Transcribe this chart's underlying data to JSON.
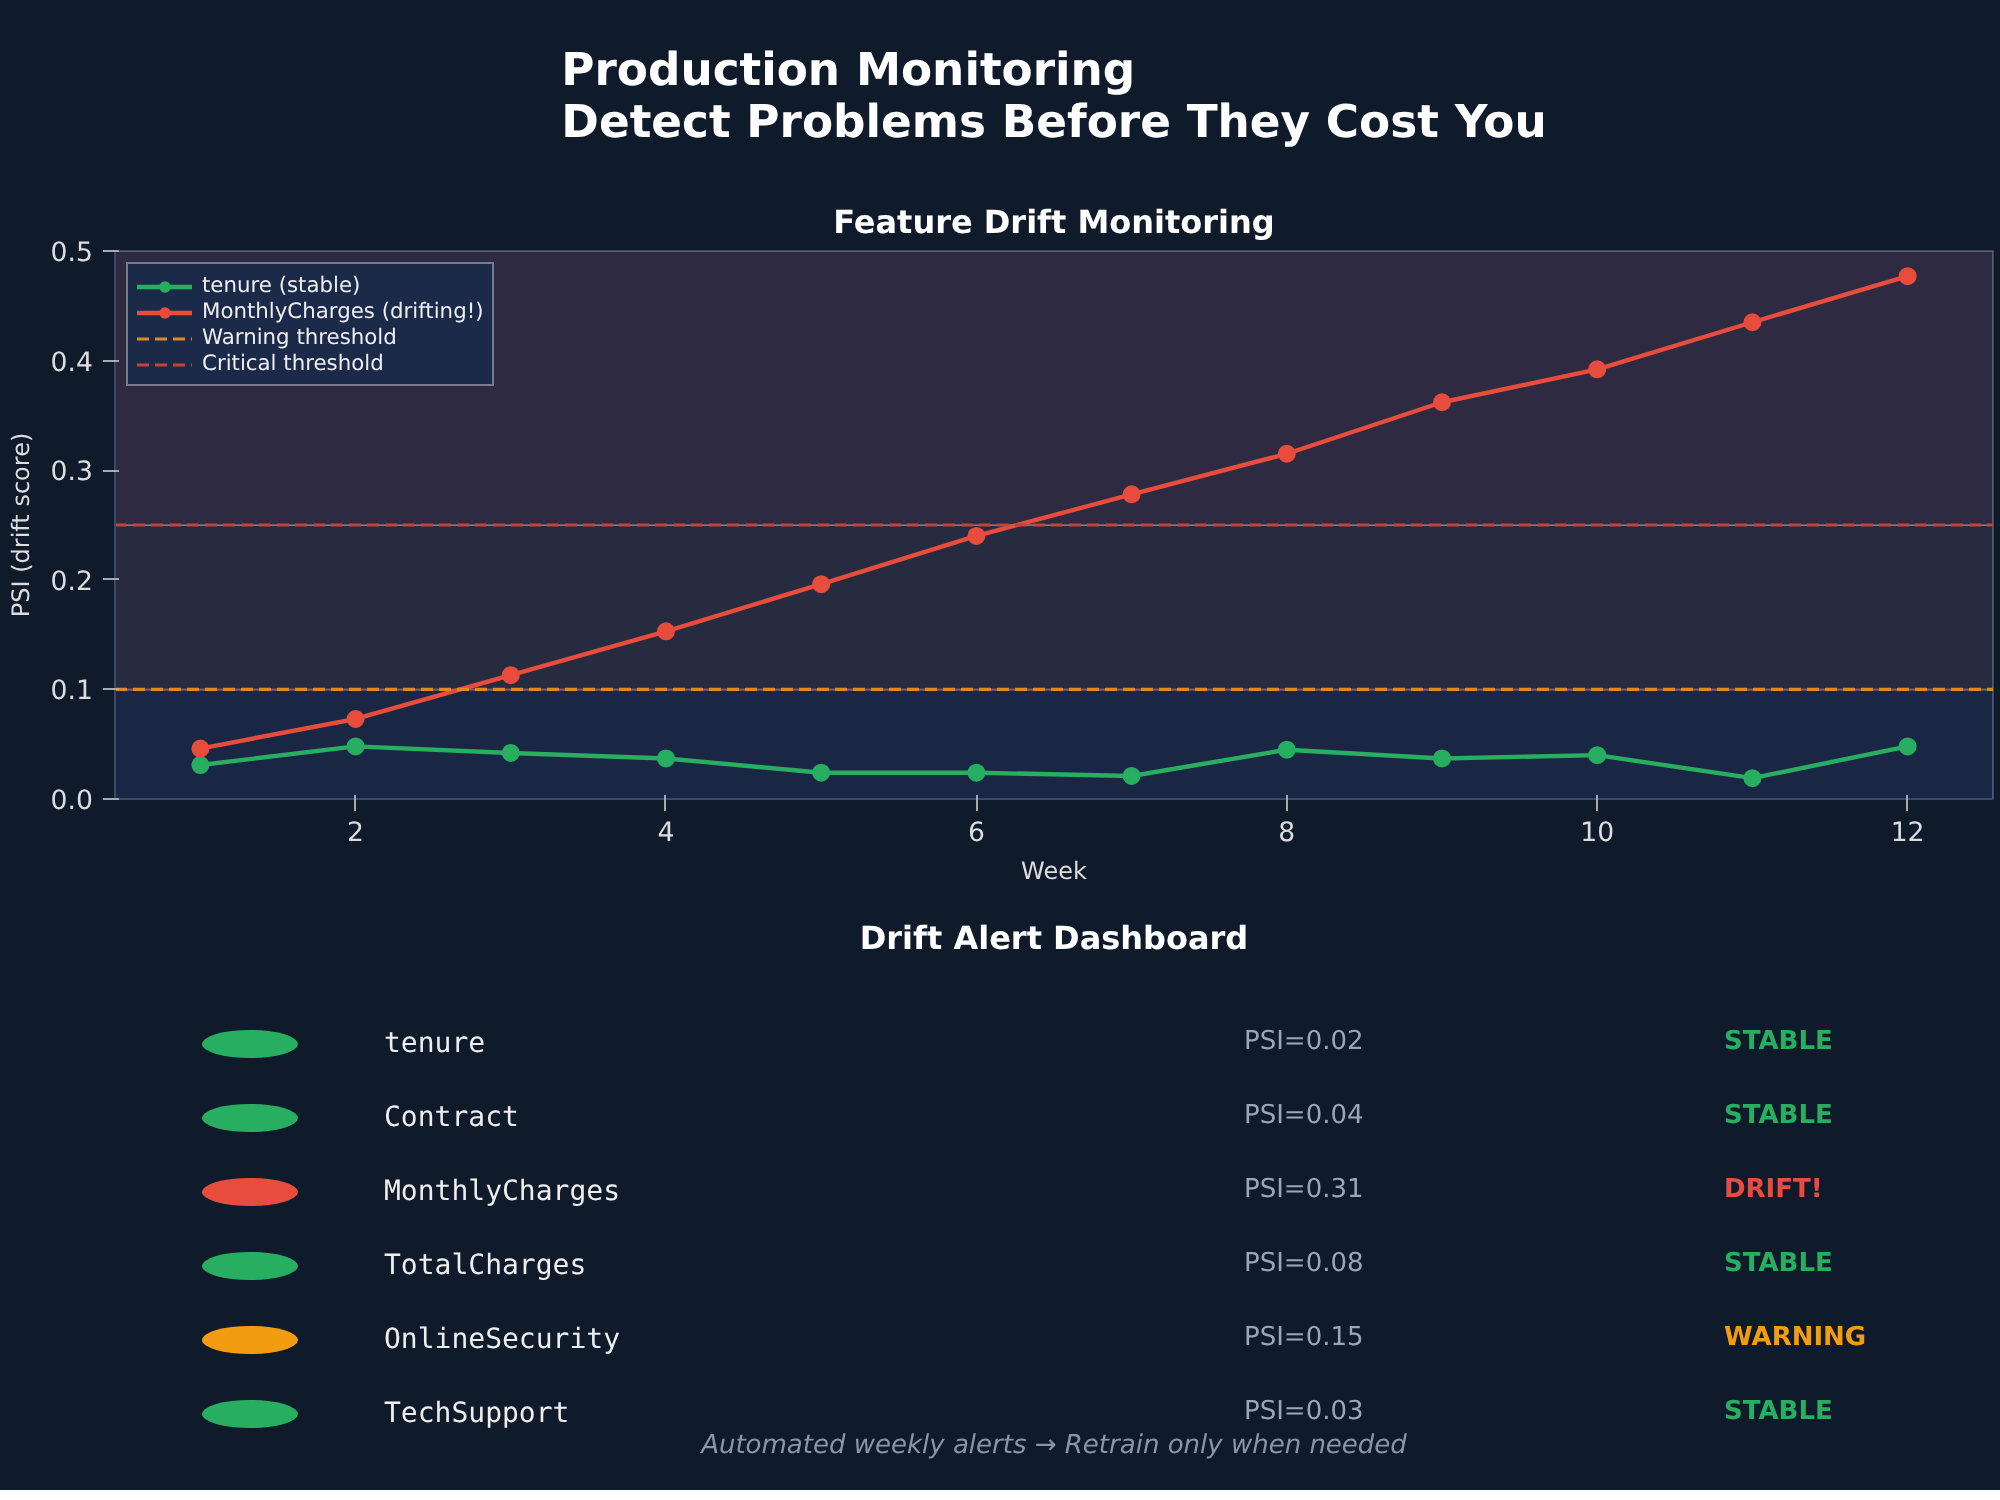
{
  "chart_data": [
    {
      "type": "line",
      "title": "Production Monitoring\nDetect Problems Before They Cost You",
      "subtitle": "Feature Drift Monitoring",
      "xlabel": "Week",
      "ylabel": "PSI (drift score)",
      "x": [
        1,
        2,
        3,
        4,
        5,
        6,
        7,
        8,
        9,
        10,
        11,
        12
      ],
      "series": [
        {
          "name": "tenure (stable)",
          "color": "#27ae60",
          "values": [
            0.031,
            0.048,
            0.042,
            0.037,
            0.024,
            0.024,
            0.021,
            0.045,
            0.037,
            0.04,
            0.019,
            0.048
          ]
        },
        {
          "name": "MonthlyCharges (drifting!)",
          "color": "#e74c3c",
          "values": [
            0.046,
            0.073,
            0.113,
            0.153,
            0.196,
            0.24,
            0.278,
            0.315,
            0.362,
            0.392,
            0.435,
            0.477
          ]
        }
      ],
      "xlim": [
        0.45,
        12.55
      ],
      "ylim": [
        0,
        0.5
      ],
      "xticks": [
        2,
        4,
        6,
        8,
        10,
        12
      ],
      "yticks": [
        {
          "value": 0,
          "label": "0.0"
        },
        {
          "value": 0.1,
          "label": "0.1"
        },
        {
          "value": 0.2,
          "label": "0.2"
        },
        {
          "value": 0.3,
          "label": "0.3"
        },
        {
          "value": 0.4,
          "label": "0.4"
        },
        {
          "value": 0.5,
          "label": "0.5"
        }
      ],
      "ref_lines": [
        {
          "axis": "y",
          "value": 0.1,
          "label": "Warning threshold",
          "color": "#e08a1e",
          "line_style": "dashed"
        },
        {
          "axis": "y",
          "value": 0.25,
          "label": "Critical threshold",
          "color": "#c0443a",
          "line_style": "dashed"
        }
      ],
      "bands": [
        {
          "axis": "y",
          "from": 0,
          "to": 0.1,
          "color": "#1a2744"
        },
        {
          "axis": "y",
          "from": 0.1,
          "to": 0.25,
          "color": "#262b40"
        },
        {
          "axis": "y",
          "from": 0.25,
          "to": 0.5,
          "color": "#2e2a42"
        }
      ],
      "marker": "circle",
      "line_style": "solid",
      "grid": false,
      "legend": "top left"
    },
    {
      "type": "other",
      "title": "Drift Alert Dashboard",
      "categories": [
        "tenure",
        "Contract",
        "MonthlyCharges",
        "TotalCharges",
        "OnlineSecurity",
        "TechSupport"
      ],
      "value_labels": [
        "PSI=0.02",
        "PSI=0.04",
        "PSI=0.31",
        "PSI=0.08",
        "PSI=0.15",
        "PSI=0.03"
      ],
      "values": [
        0.02,
        0.04,
        0.31,
        0.08,
        0.15,
        0.03
      ],
      "annotations": [
        "STABLE",
        "STABLE",
        "DRIFT!",
        "STABLE",
        "WARNING",
        "STABLE",
        "Automated weekly alerts → Retrain only when needed"
      ]
    }
  ]
}
